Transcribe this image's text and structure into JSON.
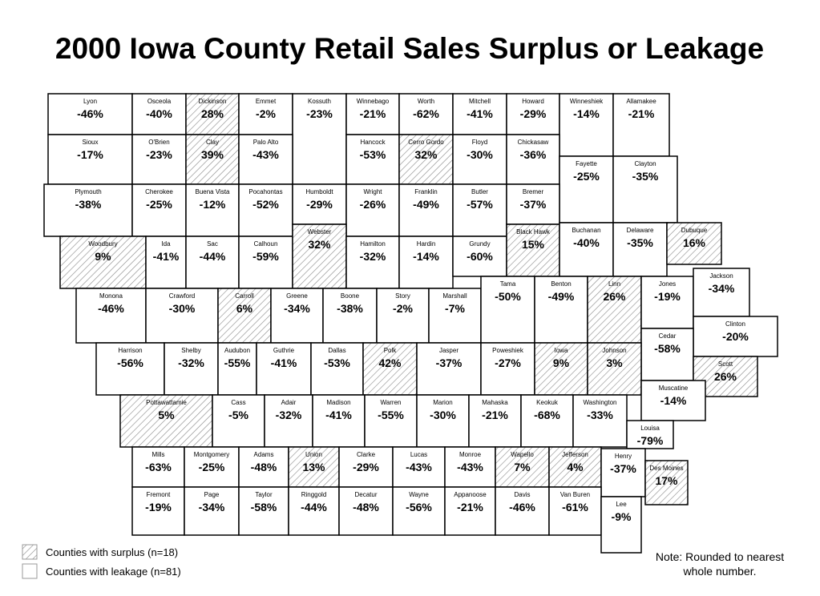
{
  "title": "2000 Iowa County Retail Sales Surplus or Leakage",
  "counties": [
    {
      "name": "Lyon",
      "value": "-46%",
      "surplus": false
    },
    {
      "name": "Osceola",
      "value": "-40%",
      "surplus": false
    },
    {
      "name": "Dickinson",
      "value": "28%",
      "surplus": true
    },
    {
      "name": "Emmet",
      "value": "-2%",
      "surplus": false
    },
    {
      "name": "Kossuth",
      "value": "-23%",
      "surplus": false
    },
    {
      "name": "Winnebago",
      "value": "-21%",
      "surplus": false
    },
    {
      "name": "Worth",
      "value": "-62%",
      "surplus": false
    },
    {
      "name": "Mitchell",
      "value": "-41%",
      "surplus": false
    },
    {
      "name": "Howard",
      "value": "-29%",
      "surplus": false
    },
    {
      "name": "Winneshiek",
      "value": "-14%",
      "surplus": false
    },
    {
      "name": "Allamakee",
      "value": "-21%",
      "surplus": false
    },
    {
      "name": "Sioux",
      "value": "-17%",
      "surplus": false
    },
    {
      "name": "O'Brien",
      "value": "-23%",
      "surplus": false
    },
    {
      "name": "Clay",
      "value": "39%",
      "surplus": true
    },
    {
      "name": "Palo Alto",
      "value": "-43%",
      "surplus": false
    },
    {
      "name": "Hancock",
      "value": "-53%",
      "surplus": false
    },
    {
      "name": "Cerro Gordo",
      "value": "32%",
      "surplus": true
    },
    {
      "name": "Floyd",
      "value": "-30%",
      "surplus": false
    },
    {
      "name": "Chickasaw",
      "value": "-36%",
      "surplus": false
    },
    {
      "name": "Fayette",
      "value": "-25%",
      "surplus": false
    },
    {
      "name": "Clayton",
      "value": "-35%",
      "surplus": false
    },
    {
      "name": "Plymouth",
      "value": "-38%",
      "surplus": false
    },
    {
      "name": "Cherokee",
      "value": "-25%",
      "surplus": false
    },
    {
      "name": "Buena Vista",
      "value": "-12%",
      "surplus": false
    },
    {
      "name": "Pocahontas",
      "value": "-52%",
      "surplus": false
    },
    {
      "name": "Humboldt",
      "value": "-29%",
      "surplus": false
    },
    {
      "name": "Wright",
      "value": "-26%",
      "surplus": false
    },
    {
      "name": "Franklin",
      "value": "-49%",
      "surplus": false
    },
    {
      "name": "Butler",
      "value": "-57%",
      "surplus": false
    },
    {
      "name": "Bremer",
      "value": "-37%",
      "surplus": false
    },
    {
      "name": "Woodbury",
      "value": "9%",
      "surplus": true
    },
    {
      "name": "Ida",
      "value": "-41%",
      "surplus": false
    },
    {
      "name": "Sac",
      "value": "-44%",
      "surplus": false
    },
    {
      "name": "Calhoun",
      "value": "-59%",
      "surplus": false
    },
    {
      "name": "Webster",
      "value": "32%",
      "surplus": true
    },
    {
      "name": "Hamilton",
      "value": "-32%",
      "surplus": false
    },
    {
      "name": "Hardin",
      "value": "-14%",
      "surplus": false
    },
    {
      "name": "Grundy",
      "value": "-60%",
      "surplus": false
    },
    {
      "name": "Black Hawk",
      "value": "15%",
      "surplus": true
    },
    {
      "name": "Buchanan",
      "value": "-40%",
      "surplus": false
    },
    {
      "name": "Delaware",
      "value": "-35%",
      "surplus": false
    },
    {
      "name": "Dubuque",
      "value": "16%",
      "surplus": true
    },
    {
      "name": "Monona",
      "value": "-46%",
      "surplus": false
    },
    {
      "name": "Crawford",
      "value": "-30%",
      "surplus": false
    },
    {
      "name": "Carroll",
      "value": "6%",
      "surplus": true
    },
    {
      "name": "Greene",
      "value": "-34%",
      "surplus": false
    },
    {
      "name": "Boone",
      "value": "-38%",
      "surplus": false
    },
    {
      "name": "Story",
      "value": "-2%",
      "surplus": false
    },
    {
      "name": "Marshall",
      "value": "-7%",
      "surplus": false
    },
    {
      "name": "Tama",
      "value": "-50%",
      "surplus": false
    },
    {
      "name": "Benton",
      "value": "-49%",
      "surplus": false
    },
    {
      "name": "Linn",
      "value": "26%",
      "surplus": true
    },
    {
      "name": "Jones",
      "value": "-19%",
      "surplus": false
    },
    {
      "name": "Jackson",
      "value": "-34%",
      "surplus": false
    },
    {
      "name": "Clinton",
      "value": "-20%",
      "surplus": false
    },
    {
      "name": "Cedar",
      "value": "-58%",
      "surplus": false
    },
    {
      "name": "Harrison",
      "value": "-56%",
      "surplus": false
    },
    {
      "name": "Shelby",
      "value": "-32%",
      "surplus": false
    },
    {
      "name": "Audubon",
      "value": "-55%",
      "surplus": false
    },
    {
      "name": "Guthrie",
      "value": "-41%",
      "surplus": false
    },
    {
      "name": "Dallas",
      "value": "-53%",
      "surplus": false
    },
    {
      "name": "Polk",
      "value": "42%",
      "surplus": true
    },
    {
      "name": "Jasper",
      "value": "-37%",
      "surplus": false
    },
    {
      "name": "Poweshiek",
      "value": "-27%",
      "surplus": false
    },
    {
      "name": "Iowa",
      "value": "9%",
      "surplus": true
    },
    {
      "name": "Johnson",
      "value": "3%",
      "surplus": true
    },
    {
      "name": "Scott",
      "value": "26%",
      "surplus": true
    },
    {
      "name": "Muscatine",
      "value": "-14%",
      "surplus": false
    },
    {
      "name": "Pottawattamie",
      "value": "5%",
      "surplus": true
    },
    {
      "name": "Cass",
      "value": "-5%",
      "surplus": false
    },
    {
      "name": "Adair",
      "value": "-32%",
      "surplus": false
    },
    {
      "name": "Madison",
      "value": "-41%",
      "surplus": false
    },
    {
      "name": "Warren",
      "value": "-55%",
      "surplus": false
    },
    {
      "name": "Marion",
      "value": "-30%",
      "surplus": false
    },
    {
      "name": "Mahaska",
      "value": "-21%",
      "surplus": false
    },
    {
      "name": "Keokuk",
      "value": "-68%",
      "surplus": false
    },
    {
      "name": "Washington",
      "value": "-33%",
      "surplus": false
    },
    {
      "name": "Louisa",
      "value": "-79%",
      "surplus": false
    },
    {
      "name": "Mills",
      "value": "-63%",
      "surplus": false
    },
    {
      "name": "Montgomery",
      "value": "-25%",
      "surplus": false
    },
    {
      "name": "Adams",
      "value": "-48%",
      "surplus": false
    },
    {
      "name": "Union",
      "value": "13%",
      "surplus": true
    },
    {
      "name": "Clarke",
      "value": "-29%",
      "surplus": false
    },
    {
      "name": "Lucas",
      "value": "-43%",
      "surplus": false
    },
    {
      "name": "Monroe",
      "value": "-43%",
      "surplus": false
    },
    {
      "name": "Wapello",
      "value": "7%",
      "surplus": true
    },
    {
      "name": "Jefferson",
      "value": "4%",
      "surplus": true
    },
    {
      "name": "Henry",
      "value": "-37%",
      "surplus": false
    },
    {
      "name": "Des Moines",
      "value": "17%",
      "surplus": true
    },
    {
      "name": "Fremont",
      "value": "-19%",
      "surplus": false
    },
    {
      "name": "Page",
      "value": "-34%",
      "surplus": false
    },
    {
      "name": "Taylor",
      "value": "-58%",
      "surplus": false
    },
    {
      "name": "Ringgold",
      "value": "-44%",
      "surplus": false
    },
    {
      "name": "Decatur",
      "value": "-48%",
      "surplus": false
    },
    {
      "name": "Wayne",
      "value": "-56%",
      "surplus": false
    },
    {
      "name": "Appanoose",
      "value": "-21%",
      "surplus": false
    },
    {
      "name": "Davis",
      "value": "-46%",
      "surplus": false
    },
    {
      "name": "Van Buren",
      "value": "-61%",
      "surplus": false
    },
    {
      "name": "Lee",
      "value": "-9%",
      "surplus": false
    }
  ],
  "legend": [
    {
      "label": "Counties with surplus (n=18)",
      "surplus": true
    },
    {
      "label": "Counties with leakage (n=81)",
      "surplus": false
    }
  ],
  "note": "Note: Rounded to nearest whole number."
}
